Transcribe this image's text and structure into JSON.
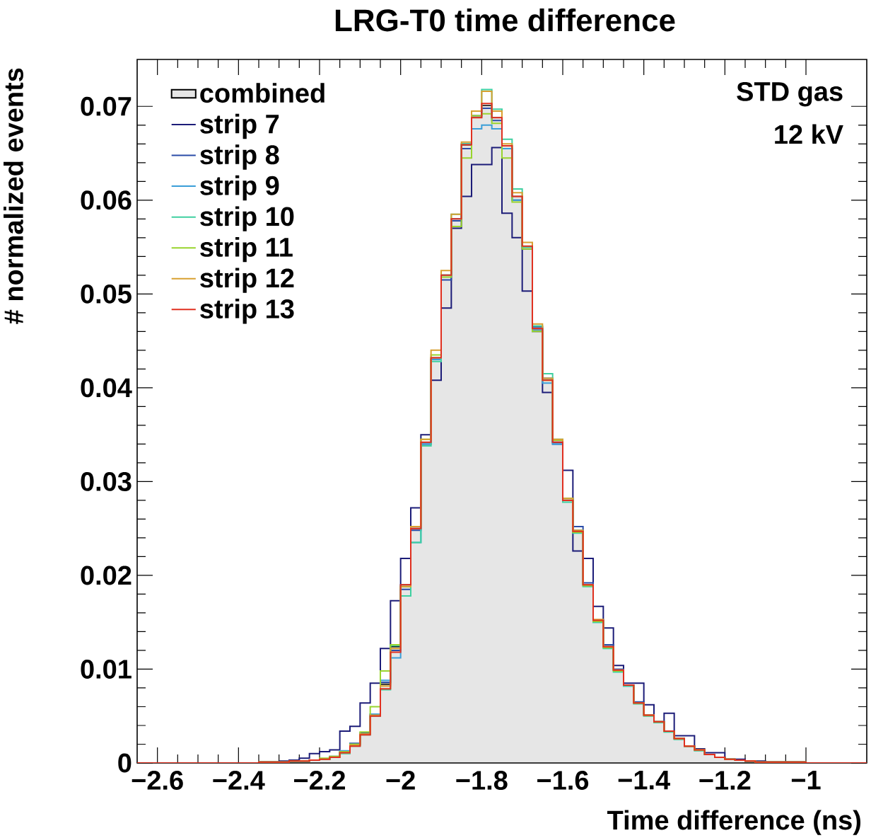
{
  "chart_data": {
    "type": "histogram",
    "title": "LRG-T0 time difference",
    "xlabel": "Time difference (ns)",
    "ylabel": "# normalized events",
    "annotations": [
      "STD gas",
      "12 kV"
    ],
    "bins": [
      -2.65,
      -2.625,
      -2.6,
      -2.575,
      -2.55,
      -2.525,
      -2.5,
      -2.475,
      -2.45,
      -2.425,
      -2.4,
      -2.375,
      -2.35,
      -2.325,
      -2.3,
      -2.275,
      -2.25,
      -2.225,
      -2.2,
      -2.175,
      -2.15,
      -2.125,
      -2.1,
      -2.075,
      -2.05,
      -2.025,
      -2,
      -1.975,
      -1.95,
      -1.925,
      -1.9,
      -1.875,
      -1.85,
      -1.825,
      -1.8,
      -1.775,
      -1.75,
      -1.725,
      -1.7,
      -1.675,
      -1.65,
      -1.625,
      -1.6,
      -1.575,
      -1.55,
      -1.525,
      -1.5,
      -1.475,
      -1.45,
      -1.425,
      -1.4,
      -1.375,
      -1.35,
      -1.325,
      -1.3,
      -1.275,
      -1.25,
      -1.225,
      -1.2,
      -1.175,
      -1.15,
      -1.125,
      -1.1,
      -1.075,
      -1.05,
      -1.025,
      -1,
      -0.975,
      -0.95,
      -0.925,
      -0.9,
      -0.875,
      -0.85
    ],
    "series": [
      {
        "name": "combined",
        "color": "#e6e6e6",
        "values": [
          0,
          0,
          0,
          0,
          0,
          0,
          0,
          0,
          0,
          0,
          0,
          0,
          0.0001,
          0.0001,
          0.0001,
          0.0002,
          0.0002,
          0.0003,
          0.0004,
          0.0006,
          0.0011,
          0.0019,
          0.0031,
          0.0051,
          0.0084,
          0.0124,
          0.019,
          0.025,
          0.0342,
          0.0432,
          0.052,
          0.058,
          0.0659,
          0.0688,
          0.0701,
          0.0688,
          0.0658,
          0.0604,
          0.0551,
          0.0463,
          0.0408,
          0.0342,
          0.028,
          0.0247,
          0.019,
          0.0152,
          0.0124,
          0.0099,
          0.0083,
          0.0064,
          0.0051,
          0.0044,
          0.0034,
          0.0026,
          0.0018,
          0.0014,
          0.0009,
          0.0006,
          0.0004,
          0.0003,
          0.0002,
          0.0001,
          0.0001,
          0.0001,
          0.0001,
          0.0001,
          0,
          0,
          0,
          0,
          0,
          0
        ]
      },
      {
        "name": "strip 7",
        "color": "#1c1c78",
        "values": [
          0,
          0,
          0,
          0,
          0,
          0,
          0,
          0,
          0,
          0,
          0,
          0,
          0.0001,
          0.0001,
          0.0002,
          0.0003,
          0.0005,
          0.001,
          0.0012,
          0.0014,
          0.0034,
          0.0039,
          0.0064,
          0.0085,
          0.0122,
          0.0173,
          0.0218,
          0.0272,
          0.035,
          0.0408,
          0.0485,
          0.057,
          0.0604,
          0.0638,
          0.0638,
          0.0656,
          0.0586,
          0.056,
          0.0503,
          0.046,
          0.0395,
          0.0342,
          0.0312,
          0.0226,
          0.0218,
          0.0167,
          0.0144,
          0.0104,
          0.0085,
          0.0085,
          0.0062,
          0.0044,
          0.0053,
          0.0029,
          0.0029,
          0.0015,
          0.0011,
          0.0011,
          0.0004,
          0.0004,
          0.0002,
          0.0002,
          0.0001,
          0.0001,
          0.0001,
          0.0001,
          0,
          0,
          0,
          0,
          0,
          0
        ]
      },
      {
        "name": "strip 8",
        "color": "#2a4ca8",
        "values": [
          0,
          0,
          0,
          0,
          0,
          0,
          0,
          0,
          0,
          0,
          0,
          0,
          0.0001,
          0.0001,
          0.0001,
          0.0002,
          0.0002,
          0.0003,
          0.0004,
          0.0007,
          0.0012,
          0.0021,
          0.0032,
          0.0052,
          0.0086,
          0.012,
          0.0185,
          0.0248,
          0.034,
          0.043,
          0.0515,
          0.0578,
          0.0655,
          0.069,
          0.0698,
          0.0685,
          0.0655,
          0.06,
          0.0548,
          0.0465,
          0.041,
          0.034,
          0.0282,
          0.0252,
          0.0192,
          0.0152,
          0.0126,
          0.01,
          0.0083,
          0.0065,
          0.0051,
          0.0044,
          0.0034,
          0.0026,
          0.0018,
          0.0014,
          0.0009,
          0.0006,
          0.0004,
          0.0003,
          0.0002,
          0.0001,
          0.0001,
          0.0001,
          0.0001,
          0.0001,
          0,
          0,
          0,
          0,
          0,
          0
        ]
      },
      {
        "name": "strip 9",
        "color": "#3a9ed8",
        "values": [
          0,
          0,
          0,
          0,
          0,
          0,
          0,
          0,
          0,
          0,
          0,
          0,
          0.0001,
          0.0001,
          0.0001,
          0.0002,
          0.0002,
          0.0003,
          0.0004,
          0.0006,
          0.0013,
          0.002,
          0.0031,
          0.0052,
          0.0088,
          0.0112,
          0.0188,
          0.0235,
          0.034,
          0.043,
          0.052,
          0.058,
          0.066,
          0.0676,
          0.068,
          0.0676,
          0.0655,
          0.06,
          0.055,
          0.0462,
          0.0405,
          0.034,
          0.028,
          0.0248,
          0.019,
          0.015,
          0.0124,
          0.0099,
          0.0082,
          0.0064,
          0.0051,
          0.0043,
          0.0034,
          0.0026,
          0.0018,
          0.0014,
          0.0009,
          0.0006,
          0.0004,
          0.0003,
          0.0002,
          0.0001,
          0.0001,
          0.0001,
          0.0001,
          0.0001,
          0,
          0,
          0,
          0,
          0,
          0
        ]
      },
      {
        "name": "strip 10",
        "color": "#3fd0a0",
        "values": [
          0,
          0,
          0,
          0,
          0,
          0,
          0,
          0,
          0,
          0,
          0,
          0,
          0.0001,
          0.0001,
          0.0001,
          0.0002,
          0.0002,
          0.0003,
          0.0004,
          0.0006,
          0.001,
          0.0018,
          0.003,
          0.005,
          0.0078,
          0.0125,
          0.0178,
          0.0235,
          0.0338,
          0.0428,
          0.052,
          0.0585,
          0.066,
          0.0695,
          0.0718,
          0.0697,
          0.0665,
          0.0612,
          0.055,
          0.0466,
          0.0415,
          0.0345,
          0.0278,
          0.0245,
          0.0188,
          0.015,
          0.0122,
          0.0097,
          0.0082,
          0.0063,
          0.005,
          0.0043,
          0.0033,
          0.0025,
          0.0018,
          0.0013,
          0.0009,
          0.0006,
          0.0004,
          0.0003,
          0.0002,
          0.0001,
          0.0001,
          0.0001,
          0.0001,
          0.0001,
          0,
          0,
          0,
          0,
          0,
          0
        ]
      },
      {
        "name": "strip 11",
        "color": "#98d42e",
        "values": [
          0,
          0,
          0,
          0,
          0,
          0,
          0,
          0,
          0,
          0,
          0,
          0,
          0.0001,
          0.0001,
          0.0001,
          0.0002,
          0.0002,
          0.0003,
          0.0005,
          0.0007,
          0.0012,
          0.002,
          0.0033,
          0.006,
          0.0098,
          0.0126,
          0.0188,
          0.0252,
          0.0345,
          0.0435,
          0.0518,
          0.0572,
          0.0645,
          0.069,
          0.0692,
          0.0682,
          0.0645,
          0.0598,
          0.0548,
          0.046,
          0.0408,
          0.0344,
          0.0282,
          0.0246,
          0.0189,
          0.0151,
          0.0123,
          0.0098,
          0.0083,
          0.0064,
          0.0051,
          0.0044,
          0.0034,
          0.0026,
          0.0018,
          0.0014,
          0.0009,
          0.0006,
          0.0004,
          0.0003,
          0.0002,
          0.0001,
          0.0001,
          0.0001,
          0.0001,
          0.0001,
          0,
          0,
          0,
          0,
          0,
          0
        ]
      },
      {
        "name": "strip 12",
        "color": "#d8a030",
        "values": [
          0,
          0,
          0,
          0,
          0,
          0,
          0,
          0,
          0,
          0,
          0,
          0,
          0.0001,
          0.0001,
          0.0001,
          0.0002,
          0.0002,
          0.0003,
          0.0004,
          0.0006,
          0.0011,
          0.0019,
          0.0031,
          0.0051,
          0.0082,
          0.0122,
          0.0188,
          0.0252,
          0.0345,
          0.044,
          0.0525,
          0.0585,
          0.0662,
          0.0695,
          0.0716,
          0.0695,
          0.066,
          0.0608,
          0.0555,
          0.0468,
          0.041,
          0.0345,
          0.0282,
          0.0248,
          0.019,
          0.0153,
          0.0124,
          0.0099,
          0.0083,
          0.0064,
          0.0051,
          0.0044,
          0.0034,
          0.0026,
          0.0018,
          0.0014,
          0.0009,
          0.0006,
          0.0004,
          0.0003,
          0.0002,
          0.0001,
          0.0001,
          0.0001,
          0.0001,
          0.0001,
          0,
          0,
          0,
          0,
          0,
          0
        ]
      },
      {
        "name": "strip 13",
        "color": "#e03020",
        "values": [
          0,
          0,
          0,
          0,
          0,
          0,
          0,
          0,
          0,
          0,
          0,
          0,
          0.0001,
          0.0001,
          0.0001,
          0.0002,
          0.0002,
          0.0003,
          0.0004,
          0.0006,
          0.0011,
          0.0018,
          0.003,
          0.005,
          0.0079,
          0.0118,
          0.019,
          0.025,
          0.0342,
          0.0432,
          0.052,
          0.058,
          0.0659,
          0.0688,
          0.0703,
          0.0688,
          0.0658,
          0.0604,
          0.0551,
          0.0463,
          0.0408,
          0.0342,
          0.028,
          0.0247,
          0.019,
          0.0152,
          0.0124,
          0.0099,
          0.0083,
          0.0064,
          0.0051,
          0.0044,
          0.0034,
          0.0026,
          0.0018,
          0.0014,
          0.0009,
          0.0006,
          0.0004,
          0.0003,
          0.0002,
          0.0001,
          0.0001,
          0.0001,
          0.0001,
          0.0001,
          0,
          0,
          0,
          0,
          0,
          0
        ]
      }
    ],
    "xlim": [
      -2.65,
      -0.85
    ],
    "ylim": [
      0,
      0.075
    ],
    "xticks": [
      {
        "value": -2.6,
        "label": "−2.6"
      },
      {
        "value": -2.4,
        "label": "−2.4"
      },
      {
        "value": -2.2,
        "label": "−2.2"
      },
      {
        "value": -2,
        "label": "−2"
      },
      {
        "value": -1.8,
        "label": "−1.8"
      },
      {
        "value": -1.6,
        "label": "−1.6"
      },
      {
        "value": -1.4,
        "label": "−1.4"
      },
      {
        "value": -1.2,
        "label": "−1.2"
      },
      {
        "value": -1,
        "label": "−1"
      }
    ],
    "yticks": [
      0,
      0.01,
      0.02,
      0.03,
      0.04,
      0.05,
      0.06,
      0.07
    ],
    "legend": "top left"
  }
}
